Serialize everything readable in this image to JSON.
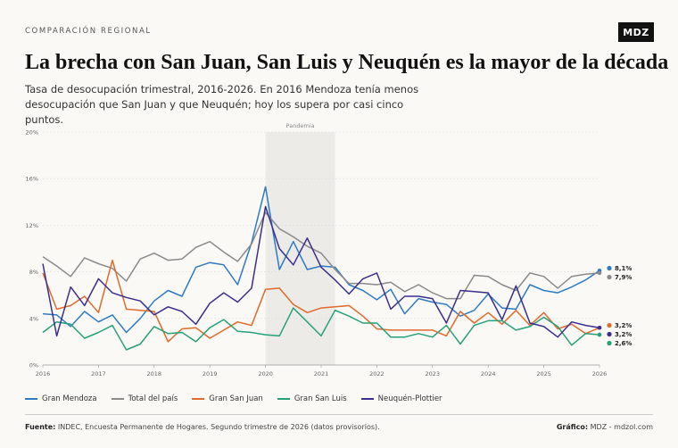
{
  "header": {
    "kicker": "COMPARACIÓN REGIONAL",
    "logo": "MDZ",
    "title": "La brecha con San Juan, San Luis y Neuquén es la mayor de la década",
    "subtitle": "Tasa de desocupación trimestral, 2016-2026. En 2016 Mendoza tenía menos desocupación que San Juan y que Neuquén; hoy los supera por casi cinco puntos."
  },
  "footer": {
    "source_label": "Fuente:",
    "source_text": "INDEC, Encuesta Permanente de Hogares. Segundo trimestre de 2026 (datos provisorios).",
    "credit_label": "Gráfico:",
    "credit_text": "MDZ - mdzol.com"
  },
  "chart_data": {
    "type": "line",
    "title": "",
    "xlabel": "",
    "ylabel": "",
    "x_ticks": [
      "2016",
      "2017",
      "2018",
      "2019",
      "2020",
      "2021",
      "2022",
      "2023",
      "2024",
      "2025",
      "2026"
    ],
    "y_ticks": [
      "0%",
      "4%",
      "8%",
      "12%",
      "16%",
      "20%"
    ],
    "ylim": [
      0,
      20
    ],
    "xlim": [
      2016,
      2026
    ],
    "grid": true,
    "legend": "bottom",
    "annotation": {
      "label": "Pandemia",
      "x_start": 2020.0,
      "x_end": 2021.25
    },
    "series": [
      {
        "name": "Gran Mendoza",
        "color": "#2e7bc4",
        "end_label": "8,1%",
        "end_value": 8.1,
        "points": [
          [
            2016.0,
            4.4
          ],
          [
            2016.25,
            4.3
          ],
          [
            2016.5,
            3.3
          ],
          [
            2016.75,
            4.6
          ],
          [
            2017.0,
            3.7
          ],
          [
            2017.25,
            4.3
          ],
          [
            2017.5,
            2.8
          ],
          [
            2017.75,
            4.0
          ],
          [
            2018.0,
            5.5
          ],
          [
            2018.25,
            6.4
          ],
          [
            2018.5,
            5.9
          ],
          [
            2018.75,
            8.4
          ],
          [
            2019.0,
            8.8
          ],
          [
            2019.25,
            8.6
          ],
          [
            2019.5,
            6.9
          ],
          [
            2019.75,
            10.5
          ],
          [
            2020.0,
            15.3
          ],
          [
            2020.25,
            8.2
          ],
          [
            2020.5,
            10.6
          ],
          [
            2020.75,
            8.2
          ],
          [
            2021.0,
            8.5
          ],
          [
            2021.25,
            8.4
          ],
          [
            2021.5,
            6.9
          ],
          [
            2021.75,
            6.4
          ],
          [
            2022.0,
            5.6
          ],
          [
            2022.25,
            6.5
          ],
          [
            2022.5,
            4.4
          ],
          [
            2022.75,
            5.7
          ],
          [
            2023.0,
            5.4
          ],
          [
            2023.25,
            5.2
          ],
          [
            2023.5,
            4.2
          ],
          [
            2023.75,
            4.7
          ],
          [
            2024.0,
            6.1
          ],
          [
            2024.25,
            4.9
          ],
          [
            2024.5,
            4.8
          ],
          [
            2024.75,
            6.9
          ],
          [
            2025.0,
            6.4
          ],
          [
            2025.25,
            6.2
          ],
          [
            2025.5,
            6.7
          ],
          [
            2025.75,
            7.3
          ],
          [
            2026.0,
            8.1
          ]
        ]
      },
      {
        "name": "Total del país",
        "color": "#8a8a8a",
        "end_label": "7,9%",
        "end_value": 7.9,
        "points": [
          [
            2016.0,
            9.3
          ],
          [
            2016.25,
            8.5
          ],
          [
            2016.5,
            7.6
          ],
          [
            2016.75,
            9.2
          ],
          [
            2017.0,
            8.7
          ],
          [
            2017.25,
            8.3
          ],
          [
            2017.5,
            7.2
          ],
          [
            2017.75,
            9.1
          ],
          [
            2018.0,
            9.6
          ],
          [
            2018.25,
            9.0
          ],
          [
            2018.5,
            9.1
          ],
          [
            2018.75,
            10.1
          ],
          [
            2019.0,
            10.6
          ],
          [
            2019.25,
            9.7
          ],
          [
            2019.5,
            8.9
          ],
          [
            2019.75,
            10.4
          ],
          [
            2020.0,
            13.1
          ],
          [
            2020.25,
            11.7
          ],
          [
            2020.5,
            11.0
          ],
          [
            2020.75,
            10.2
          ],
          [
            2021.0,
            9.6
          ],
          [
            2021.25,
            8.2
          ],
          [
            2021.5,
            7.0
          ],
          [
            2021.75,
            7.0
          ],
          [
            2022.0,
            6.9
          ],
          [
            2022.25,
            7.1
          ],
          [
            2022.5,
            6.3
          ],
          [
            2022.75,
            6.9
          ],
          [
            2023.0,
            6.2
          ],
          [
            2023.25,
            5.7
          ],
          [
            2023.5,
            5.7
          ],
          [
            2023.75,
            7.7
          ],
          [
            2024.0,
            7.6
          ],
          [
            2024.25,
            6.9
          ],
          [
            2024.5,
            6.4
          ],
          [
            2024.75,
            7.9
          ],
          [
            2025.0,
            7.6
          ],
          [
            2025.25,
            6.6
          ],
          [
            2025.5,
            7.6
          ],
          [
            2025.75,
            7.8
          ],
          [
            2026.0,
            7.9
          ]
        ]
      },
      {
        "name": "Gran San Juan",
        "color": "#e06a2c",
        "end_label": "3,2%",
        "end_value": 3.2,
        "points": [
          [
            2016.0,
            7.9
          ],
          [
            2016.25,
            4.8
          ],
          [
            2016.5,
            5.1
          ],
          [
            2016.75,
            5.9
          ],
          [
            2017.0,
            4.5
          ],
          [
            2017.25,
            9.0
          ],
          [
            2017.5,
            4.8
          ],
          [
            2017.75,
            4.7
          ],
          [
            2018.0,
            4.6
          ],
          [
            2018.25,
            2.0
          ],
          [
            2018.5,
            3.1
          ],
          [
            2018.75,
            3.2
          ],
          [
            2019.0,
            2.3
          ],
          [
            2019.25,
            3.0
          ],
          [
            2019.5,
            3.7
          ],
          [
            2019.75,
            3.4
          ],
          [
            2020.0,
            6.5
          ],
          [
            2020.25,
            6.6
          ],
          [
            2020.5,
            5.2
          ],
          [
            2020.75,
            4.5
          ],
          [
            2021.0,
            4.9
          ],
          [
            2021.25,
            5.0
          ],
          [
            2021.5,
            5.1
          ],
          [
            2021.75,
            4.2
          ],
          [
            2022.0,
            3.1
          ],
          [
            2022.25,
            3.0
          ],
          [
            2022.5,
            3.0
          ],
          [
            2022.75,
            3.0
          ],
          [
            2023.0,
            3.0
          ],
          [
            2023.25,
            2.5
          ],
          [
            2023.5,
            4.6
          ],
          [
            2023.75,
            3.6
          ],
          [
            2024.0,
            4.5
          ],
          [
            2024.25,
            3.5
          ],
          [
            2024.5,
            4.7
          ],
          [
            2024.75,
            3.4
          ],
          [
            2025.0,
            4.5
          ],
          [
            2025.25,
            3.1
          ],
          [
            2025.5,
            3.5
          ],
          [
            2025.75,
            2.7
          ],
          [
            2026.0,
            3.2
          ]
        ]
      },
      {
        "name": "Gran San Luis",
        "color": "#27a07a",
        "end_label": "2,6%",
        "end_value": 2.6,
        "points": [
          [
            2016.0,
            2.8
          ],
          [
            2016.25,
            3.7
          ],
          [
            2016.5,
            3.5
          ],
          [
            2016.75,
            2.3
          ],
          [
            2017.0,
            2.8
          ],
          [
            2017.25,
            3.4
          ],
          [
            2017.5,
            1.3
          ],
          [
            2017.75,
            1.8
          ],
          [
            2018.0,
            3.3
          ],
          [
            2018.25,
            2.7
          ],
          [
            2018.5,
            2.8
          ],
          [
            2018.75,
            2.0
          ],
          [
            2019.0,
            3.2
          ],
          [
            2019.25,
            3.9
          ],
          [
            2019.5,
            2.9
          ],
          [
            2019.75,
            2.8
          ],
          [
            2020.0,
            2.6
          ],
          [
            2020.25,
            2.5
          ],
          [
            2020.5,
            4.9
          ],
          [
            2020.75,
            3.7
          ],
          [
            2021.0,
            2.5
          ],
          [
            2021.25,
            4.7
          ],
          [
            2021.5,
            4.2
          ],
          [
            2021.75,
            3.6
          ],
          [
            2022.0,
            3.6
          ],
          [
            2022.25,
            2.4
          ],
          [
            2022.5,
            2.4
          ],
          [
            2022.75,
            2.7
          ],
          [
            2023.0,
            2.4
          ],
          [
            2023.25,
            3.4
          ],
          [
            2023.5,
            1.8
          ],
          [
            2023.75,
            3.4
          ],
          [
            2024.0,
            3.8
          ],
          [
            2024.25,
            3.8
          ],
          [
            2024.5,
            3.0
          ],
          [
            2024.75,
            3.3
          ],
          [
            2025.0,
            4.1
          ],
          [
            2025.25,
            3.3
          ],
          [
            2025.5,
            1.7
          ],
          [
            2025.75,
            2.7
          ],
          [
            2026.0,
            2.6
          ]
        ]
      },
      {
        "name": "Neuquén-Plottier",
        "color": "#3b2e8c",
        "end_label": "3,2%",
        "end_value": 3.2,
        "points": [
          [
            2016.0,
            8.7
          ],
          [
            2016.25,
            2.5
          ],
          [
            2016.5,
            6.7
          ],
          [
            2016.75,
            5.1
          ],
          [
            2017.0,
            7.4
          ],
          [
            2017.25,
            6.2
          ],
          [
            2017.5,
            5.8
          ],
          [
            2017.75,
            5.5
          ],
          [
            2018.0,
            4.3
          ],
          [
            2018.25,
            5.0
          ],
          [
            2018.5,
            4.6
          ],
          [
            2018.75,
            3.5
          ],
          [
            2019.0,
            5.3
          ],
          [
            2019.25,
            6.2
          ],
          [
            2019.5,
            5.4
          ],
          [
            2019.75,
            6.6
          ],
          [
            2020.0,
            13.6
          ],
          [
            2020.25,
            10.0
          ],
          [
            2020.5,
            8.6
          ],
          [
            2020.75,
            10.9
          ],
          [
            2021.0,
            8.4
          ],
          [
            2021.25,
            7.3
          ],
          [
            2021.5,
            6.1
          ],
          [
            2021.75,
            7.4
          ],
          [
            2022.0,
            7.9
          ],
          [
            2022.25,
            4.8
          ],
          [
            2022.5,
            5.9
          ],
          [
            2022.75,
            5.9
          ],
          [
            2023.0,
            5.7
          ],
          [
            2023.25,
            3.6
          ],
          [
            2023.5,
            6.4
          ],
          [
            2023.75,
            6.3
          ],
          [
            2024.0,
            6.2
          ],
          [
            2024.25,
            3.9
          ],
          [
            2024.5,
            6.8
          ],
          [
            2024.75,
            3.6
          ],
          [
            2025.0,
            3.3
          ],
          [
            2025.25,
            2.4
          ],
          [
            2025.5,
            3.7
          ],
          [
            2025.75,
            3.4
          ],
          [
            2026.0,
            3.2
          ]
        ]
      }
    ]
  }
}
